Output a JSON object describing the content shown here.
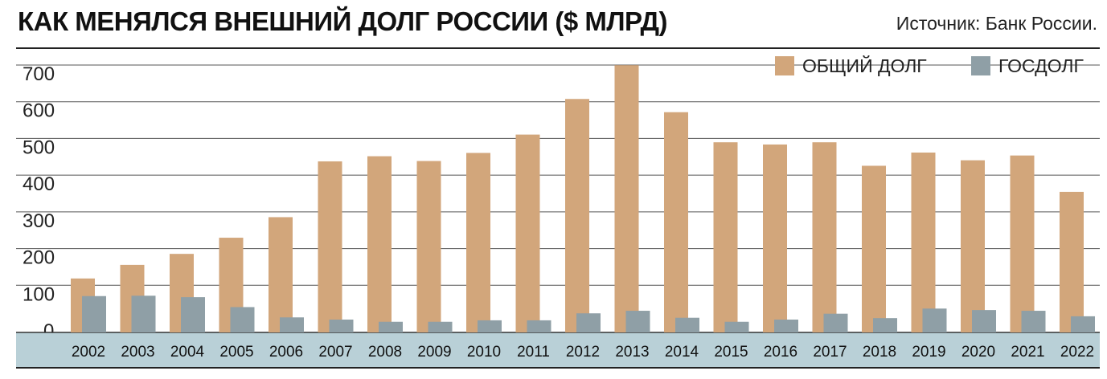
{
  "header": {
    "title": "КАК МЕНЯЛСЯ ВНЕШНИЙ ДОЛГ РОССИИ ($ МЛРД)",
    "source": "Источник: Банк России."
  },
  "chart_data": {
    "type": "bar",
    "title": "КАК МЕНЯЛСЯ ВНЕШНИЙ ДОЛГ РОССИИ ($ МЛРД)",
    "xlabel": "",
    "ylabel": "",
    "ylim": [
      0,
      700
    ],
    "yticks": [
      "0",
      "100",
      "200",
      "300",
      "400",
      "500",
      "600",
      "700"
    ],
    "grid": true,
    "legend_position": "top-right",
    "categories": [
      "2002",
      "2003",
      "2004",
      "2005",
      "2006",
      "2007",
      "2008",
      "2009",
      "2010",
      "2011",
      "2012",
      "2013",
      "2014",
      "2015",
      "2016",
      "2017",
      "2018",
      "2019",
      "2020",
      "2021",
      "2022"
    ],
    "series": [
      {
        "name": "ОБЩИЙ ДОЛГ",
        "color": "#d2a67b",
        "values": [
          147,
          184,
          214,
          258,
          314,
          466,
          480,
          467,
          489,
          539,
          636,
          728,
          600,
          518,
          512,
          518,
          454,
          490,
          469,
          482,
          383
        ]
      },
      {
        "name": "ГОСДОЛГ",
        "color": "#8f9fa6",
        "values": [
          99,
          100,
          96,
          69,
          41,
          35,
          29,
          29,
          33,
          33,
          52,
          59,
          40,
          29,
          35,
          51,
          39,
          65,
          61,
          59,
          44
        ]
      }
    ],
    "colors": {
      "axis_band": "#b9d0d7",
      "grid": "#555555"
    }
  }
}
